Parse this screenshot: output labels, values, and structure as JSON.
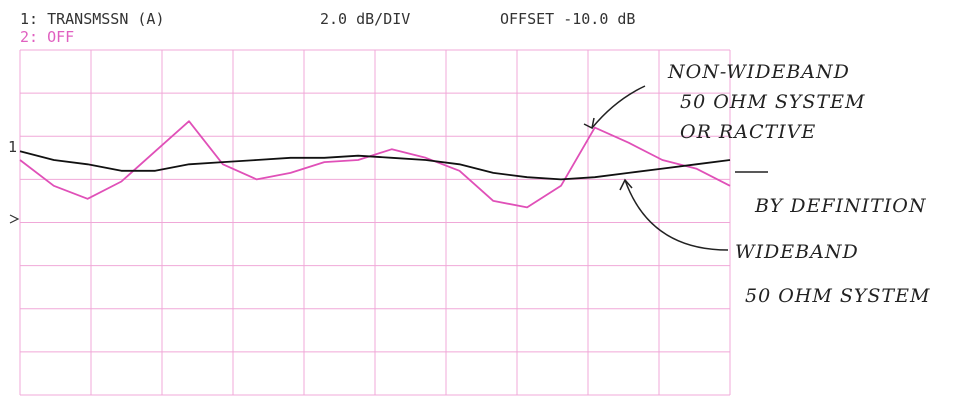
{
  "chart_data": {
    "type": "line",
    "scale": "2.0 dB/DIV",
    "offset": "OFFSET -10.0 dB",
    "reference_label": "1",
    "annotations": [
      "NON-WIDEBAND",
      "50 OHM SYSTEM",
      "OR RACTIVE",
      "BY DEFINITION",
      "WIDEBAND",
      "50 OHM SYSTEM"
    ],
    "ylim": [
      -22,
      -6
    ],
    "series": [
      {
        "name": "1: TRANSMSSN (A)",
        "color": "#111111",
        "values": [
          -10.7,
          -11.1,
          -11.3,
          -11.6,
          -11.6,
          -11.3,
          -11.2,
          -11.1,
          -11.0,
          -11.0,
          -10.9,
          -11.0,
          -11.1,
          -11.3,
          -11.7,
          -11.9,
          -12.0,
          -11.9,
          -11.7,
          -11.5,
          -11.3,
          -11.1
        ]
      },
      {
        "name": "2: OFF",
        "color": "#e050b8",
        "values": [
          -11.1,
          -12.3,
          -12.9,
          -12.1,
          -10.7,
          -9.3,
          -11.3,
          -12.0,
          -11.7,
          -11.2,
          -11.1,
          -10.6,
          -11.0,
          -11.6,
          -13.0,
          -13.3,
          -12.3,
          -9.6,
          -10.3,
          -11.1,
          -11.5,
          -12.3
        ]
      }
    ]
  }
}
